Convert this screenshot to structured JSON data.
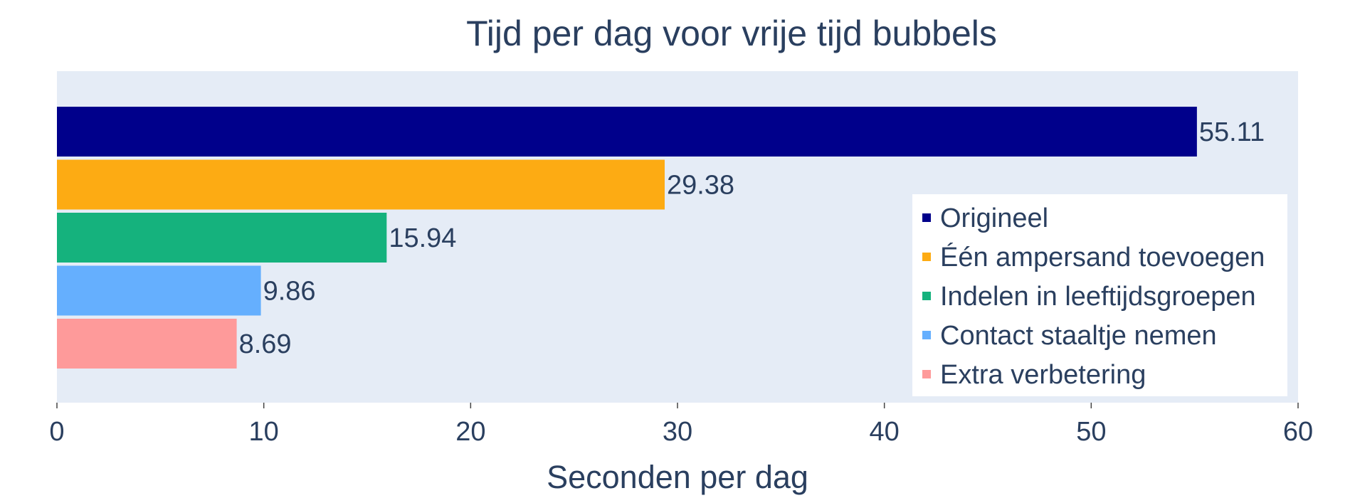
{
  "chart_data": {
    "type": "bar",
    "orientation": "horizontal",
    "title": "Tijd per dag voor vrije tijd bubbels",
    "xlabel": "Seconden per dag",
    "ylabel": "",
    "xlim": [
      0,
      60
    ],
    "x_ticks": [
      0,
      10,
      20,
      30,
      40,
      50,
      60
    ],
    "grid": false,
    "legend_position": "right",
    "series": [
      {
        "name": "Origineel",
        "value": 55.11,
        "label": "55.11",
        "color": "#00008b"
      },
      {
        "name": "Één ampersand toevoegen",
        "value": 29.38,
        "label": "29.38",
        "color": "#fdab13"
      },
      {
        "name": "Indelen in leeftijdsgroepen",
        "value": 15.94,
        "label": "15.94",
        "color": "#15b27d"
      },
      {
        "name": "Contact staaltje nemen",
        "value": 9.86,
        "label": "9.86",
        "color": "#65affe"
      },
      {
        "name": "Extra verbetering",
        "value": 8.69,
        "label": "8.69",
        "color": "#fe9a9a"
      }
    ]
  },
  "colors": {
    "plot_background": "#e5ecf6",
    "text": "#2a3f5f"
  }
}
